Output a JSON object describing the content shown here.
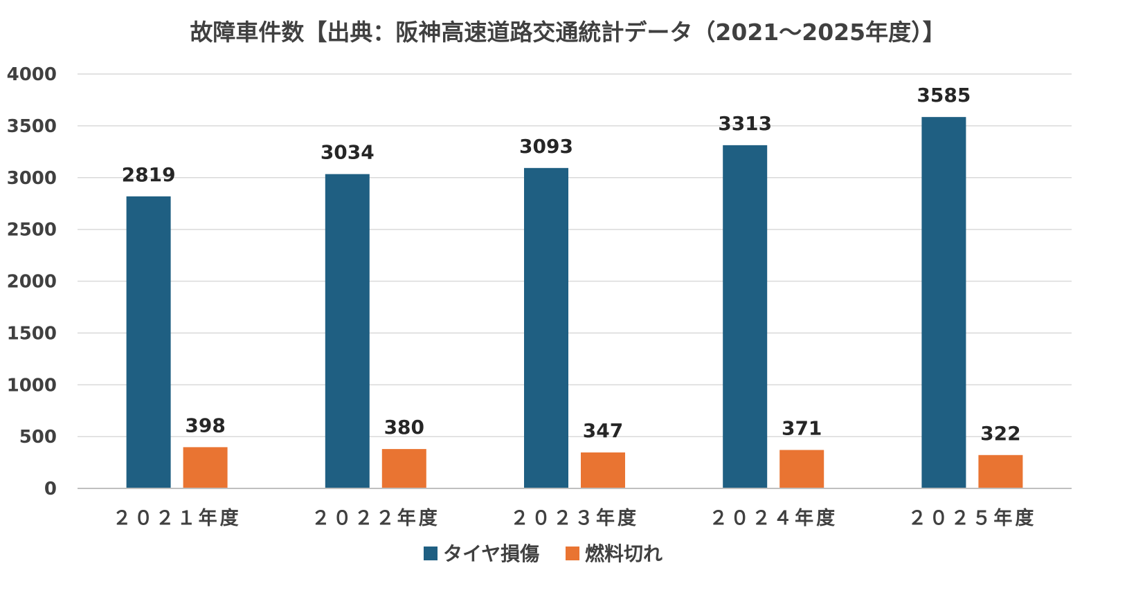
{
  "chart_data": {
    "type": "bar",
    "title": "故障車件数【出典：阪神高速道路交通統計データ（2021～2025年度）】",
    "xlabel": "",
    "ylabel": "",
    "categories": [
      "２０２１年度",
      "２０２２年度",
      "２０２３年度",
      "２０２４年度",
      "２０２５年度"
    ],
    "series": [
      {
        "name": "タイヤ損傷",
        "color": "#1f5f82",
        "values": [
          2819,
          3034,
          3093,
          3313,
          3585
        ]
      },
      {
        "name": "燃料切れ",
        "color": "#e97432",
        "values": [
          398,
          380,
          347,
          371,
          322
        ]
      }
    ],
    "ylim": [
      0,
      4000
    ],
    "yticks": [
      0,
      500,
      1000,
      1500,
      2000,
      2500,
      3000,
      3500,
      4000
    ],
    "grid": true,
    "legend_position": "bottom",
    "data_labels": true
  }
}
